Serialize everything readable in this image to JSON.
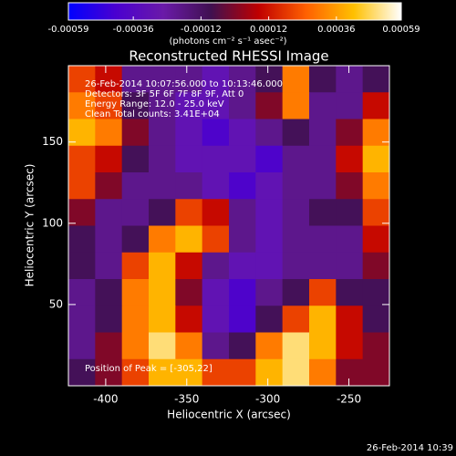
{
  "chart_data": {
    "type": "heatmap",
    "title": "Reconstructed RHESSI Image",
    "xlabel": "Heliocentric X (arcsec)",
    "ylabel": "Heliocentric Y (arcsec)",
    "xlim": [
      -423,
      -225
    ],
    "ylim": [
      0,
      197
    ],
    "xticks": [
      -400,
      -350,
      -300,
      -250
    ],
    "yticks": [
      50,
      100,
      150
    ],
    "colorbar": {
      "label": "(photons cm⁻² s⁻¹ asec⁻²)",
      "clim": [
        -0.00059,
        0.00059
      ],
      "ticks": [
        -0.00059,
        -0.00036,
        -0.00012,
        0.00012,
        0.00036,
        0.00059
      ],
      "colormap": [
        "#0000ff",
        "#4a00d0",
        "#6a1aa8",
        "#401050",
        "#c00000",
        "#ff6000",
        "#ffc000",
        "#ffffff"
      ]
    },
    "annotations": [
      "26-Feb-2014 10:07:56.000 to 10:13:46.000",
      "Detectors: 3F 5F 6F 7F 8F 9F, Att 0",
      "Energy Range: 12.0 - 25.0 keV",
      "Clean    Total counts: 3.41E+04"
    ],
    "peak_label": "Position of Peak = [-305,22]",
    "timestamp": "26-Feb-2014 10:39",
    "z": [
      [
        0.0002,
        0.0001,
        -0.0002,
        -0.0002,
        -0.0002,
        -0.0003,
        -0.0002,
        -0.0001,
        0.0003,
        -0.0001,
        -0.0002,
        -0.0001
      ],
      [
        0.0003,
        0.0002,
        -0.0001,
        -0.0002,
        -0.0003,
        -0.0003,
        -0.0002,
        0.0,
        0.0003,
        -0.0002,
        -0.0002,
        0.0001
      ],
      [
        0.0004,
        0.0003,
        0.0,
        -0.0002,
        -0.0003,
        -0.0004,
        -0.0003,
        -0.0002,
        -0.0001,
        -0.0002,
        0.0,
        0.0003
      ],
      [
        0.0002,
        0.0001,
        -0.0001,
        -0.0002,
        -0.0003,
        -0.0003,
        -0.0003,
        -0.0004,
        -0.0002,
        -0.0002,
        0.0001,
        0.0004
      ],
      [
        0.0002,
        0.0,
        -0.0002,
        -0.0002,
        -0.0002,
        -0.0003,
        -0.0004,
        -0.0003,
        -0.0002,
        -0.0002,
        0.0,
        0.0003
      ],
      [
        0.0,
        -0.0002,
        -0.0002,
        -0.0001,
        0.0002,
        0.0001,
        -0.0002,
        -0.0003,
        -0.0002,
        -0.0001,
        -0.0001,
        0.0002
      ],
      [
        -0.0001,
        -0.0002,
        -0.0001,
        0.0003,
        0.0004,
        0.0002,
        -0.0002,
        -0.0003,
        -0.0002,
        -0.0002,
        -0.0002,
        0.0001
      ],
      [
        -0.0001,
        -0.0002,
        0.0002,
        0.0004,
        0.0001,
        -0.0002,
        -0.0003,
        -0.0003,
        -0.0002,
        -0.0002,
        -0.0002,
        0.0
      ],
      [
        -0.0002,
        -0.0001,
        0.0003,
        0.0004,
        0.0,
        -0.0003,
        -0.0004,
        -0.0002,
        -0.0001,
        0.0002,
        -0.0001,
        -0.0001
      ],
      [
        -0.0002,
        -0.0001,
        0.0003,
        0.0004,
        0.0001,
        -0.0003,
        -0.0004,
        -0.0001,
        0.0002,
        0.0004,
        0.0001,
        -0.0001
      ],
      [
        -0.0002,
        0.0,
        0.0003,
        0.0005,
        0.0003,
        -0.0002,
        -0.0001,
        0.0003,
        0.0005,
        0.0004,
        0.0001,
        0.0
      ],
      [
        -0.0001,
        0.0,
        0.0002,
        0.0004,
        0.0004,
        0.0002,
        0.0002,
        0.0004,
        0.0005,
        0.0003,
        0.0,
        0.0
      ]
    ]
  }
}
